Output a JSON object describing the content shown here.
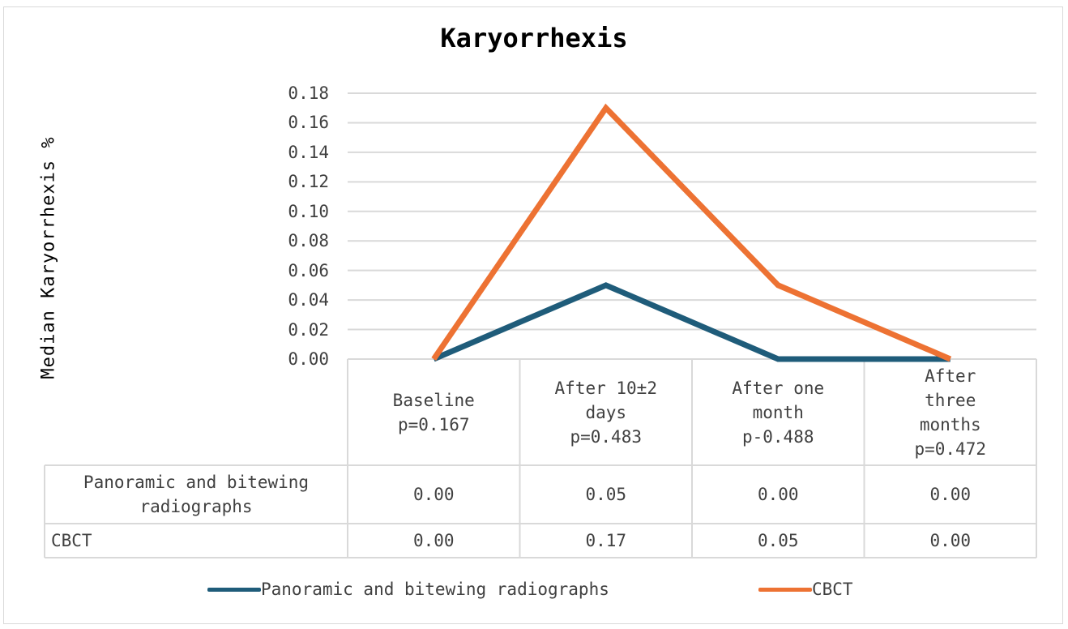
{
  "chart_data": {
    "type": "line",
    "title": "Karyorrhexis",
    "ylabel": "Median Karyorrhexis %",
    "xlabel": "",
    "ylim": [
      0,
      0.18
    ],
    "yticks": [
      "0.00",
      "0.02",
      "0.04",
      "0.06",
      "0.08",
      "0.10",
      "0.12",
      "0.14",
      "0.16",
      "0.18"
    ],
    "grid": true,
    "legend_position": "bottom",
    "categories": [
      [
        "Baseline",
        "p=0.167"
      ],
      [
        "After 10±2",
        "days",
        "p=0.483"
      ],
      [
        "After one",
        "month",
        "p-0.488"
      ],
      [
        "After",
        "three",
        "months",
        "p=0.472"
      ]
    ],
    "series": [
      {
        "name": "Panoramic and bitewing radiographs",
        "table_label": [
          "Panoramic and bitewing",
          "radiographs"
        ],
        "color": "#1f5c7a",
        "values": [
          0.0,
          0.05,
          0.0,
          0.0
        ],
        "labels": [
          "0.00",
          "0.05",
          "0.00",
          "0.00"
        ]
      },
      {
        "name": "CBCT",
        "table_label": [
          "CBCT"
        ],
        "color": "#ed7233",
        "values": [
          0.0,
          0.17,
          0.05,
          0.0
        ],
        "labels": [
          "0.00",
          "0.17",
          "0.05",
          "0.00"
        ]
      }
    ],
    "data_table": true
  }
}
